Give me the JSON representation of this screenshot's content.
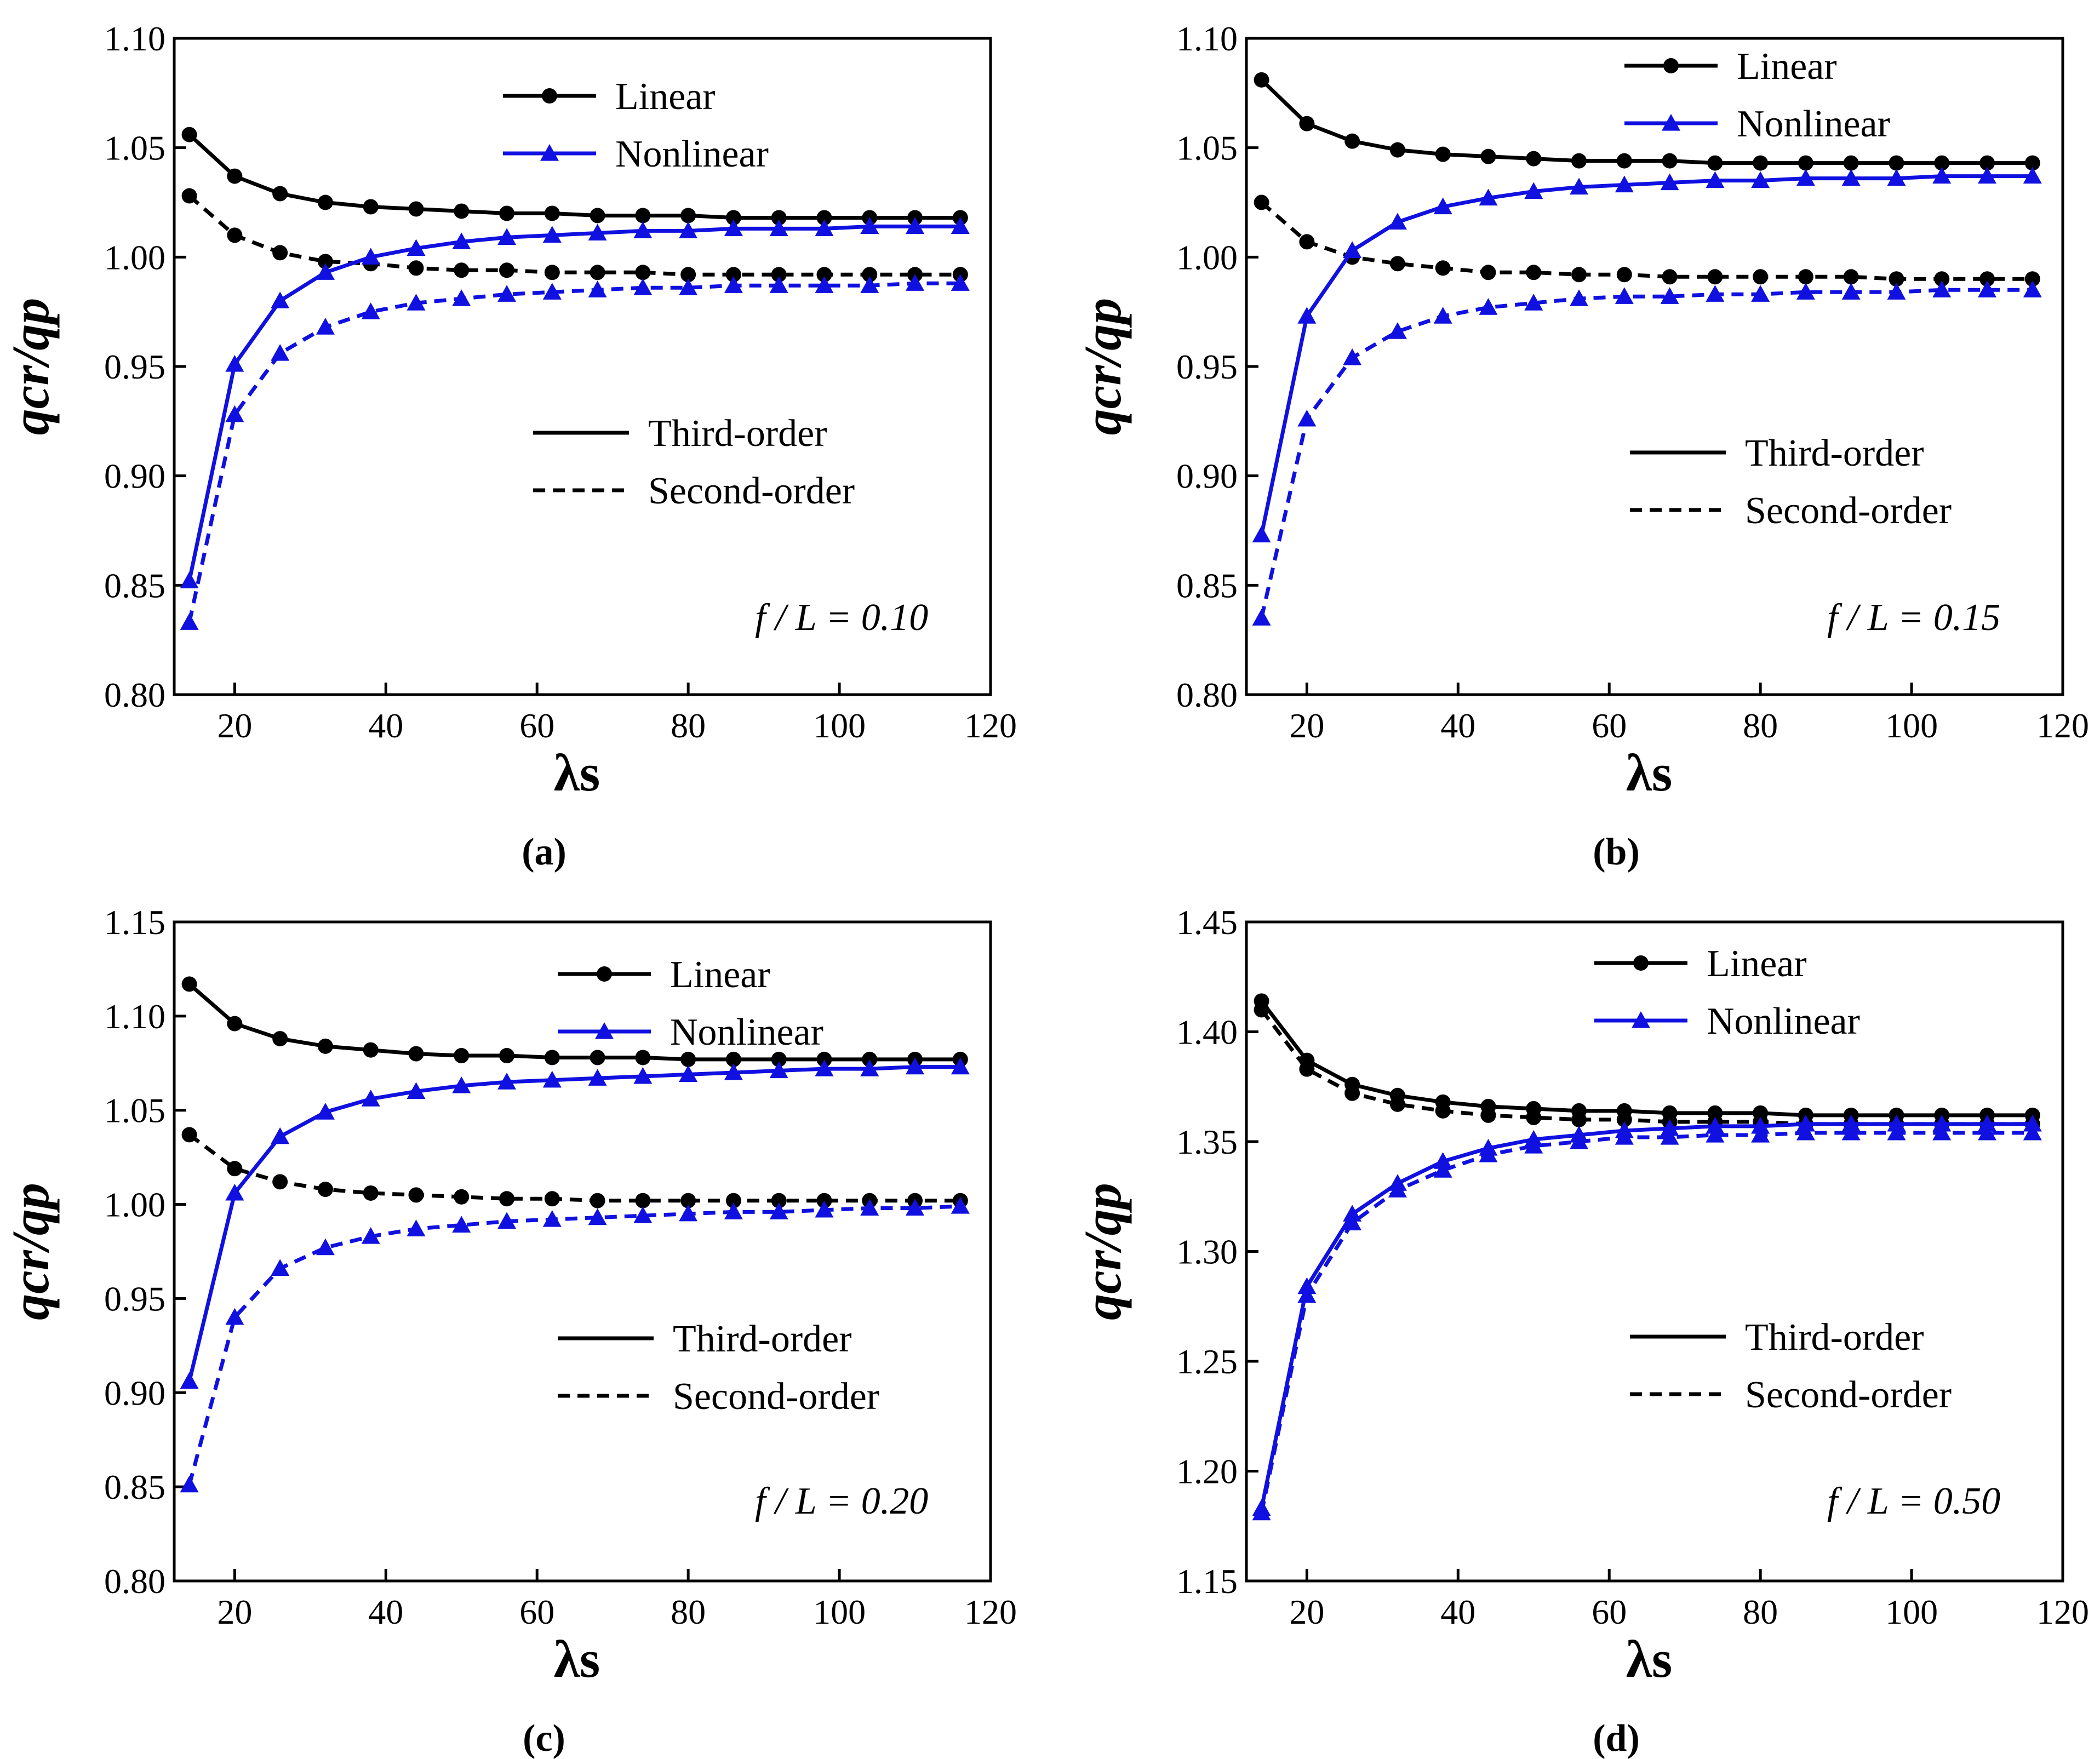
{
  "figure": {
    "captions": [
      "(a)",
      "(b)",
      "(c)",
      "(d)"
    ]
  },
  "chart_data": [
    {
      "type": "line",
      "panel": "a",
      "caption": "(a)",
      "annotation": "f / L = 0.10",
      "xlabel": "λs",
      "ylabel": "qcr/qp",
      "xlim": [
        12,
        120
      ],
      "ylim": [
        0.8,
        1.1
      ],
      "xticks": [
        20,
        40,
        60,
        80,
        100,
        120
      ],
      "yticks": [
        0.8,
        0.85,
        0.9,
        0.95,
        1.0,
        1.05,
        1.1
      ],
      "ytick_labels": [
        "0.80",
        "0.85",
        "0.90",
        "0.95",
        "1.00",
        "1.05",
        "1.10"
      ],
      "legend_markers": [
        "Linear",
        "Nonlinear"
      ],
      "legend_lines": [
        "Third-order",
        "Second-order"
      ],
      "x": [
        14,
        20,
        26,
        32,
        38,
        44,
        50,
        56,
        62,
        68,
        74,
        80,
        86,
        92,
        98,
        104,
        110,
        116
      ],
      "series": [
        {
          "name": "Linear",
          "order": "Third-order",
          "color": "#000000",
          "dash": false,
          "marker": "circle",
          "values": [
            1.056,
            1.037,
            1.029,
            1.025,
            1.023,
            1.022,
            1.021,
            1.02,
            1.02,
            1.019,
            1.019,
            1.019,
            1.018,
            1.018,
            1.018,
            1.018,
            1.018,
            1.018
          ]
        },
        {
          "name": "Linear",
          "order": "Second-order",
          "color": "#000000",
          "dash": true,
          "marker": "circle",
          "values": [
            1.028,
            1.01,
            1.002,
            0.998,
            0.997,
            0.995,
            0.994,
            0.994,
            0.993,
            0.993,
            0.993,
            0.992,
            0.992,
            0.992,
            0.992,
            0.992,
            0.992,
            0.992
          ]
        },
        {
          "name": "Nonlinear",
          "order": "Third-order",
          "color": "#1010e0",
          "dash": false,
          "marker": "triangle",
          "values": [
            0.852,
            0.951,
            0.98,
            0.993,
            1.0,
            1.004,
            1.007,
            1.009,
            1.01,
            1.011,
            1.012,
            1.012,
            1.013,
            1.013,
            1.013,
            1.014,
            1.014,
            1.014
          ]
        },
        {
          "name": "Nonlinear",
          "order": "Second-order",
          "color": "#1010e0",
          "dash": true,
          "marker": "triangle",
          "values": [
            0.833,
            0.928,
            0.956,
            0.968,
            0.975,
            0.979,
            0.981,
            0.983,
            0.984,
            0.985,
            0.986,
            0.986,
            0.987,
            0.987,
            0.987,
            0.987,
            0.988,
            0.988
          ]
        }
      ]
    },
    {
      "type": "line",
      "panel": "b",
      "caption": "(b)",
      "annotation": "f / L = 0.15",
      "xlabel": "λs",
      "ylabel": "qcr/qp",
      "xlim": [
        12,
        120
      ],
      "ylim": [
        0.8,
        1.1
      ],
      "xticks": [
        20,
        40,
        60,
        80,
        100,
        120
      ],
      "yticks": [
        0.8,
        0.85,
        0.9,
        0.95,
        1.0,
        1.05,
        1.1
      ],
      "ytick_labels": [
        "0.80",
        "0.85",
        "0.90",
        "0.95",
        "1.00",
        "1.05",
        "1.10"
      ],
      "legend_markers": [
        "Linear",
        "Nonlinear"
      ],
      "legend_lines": [
        "Third-order",
        "Second-order"
      ],
      "x": [
        14,
        20,
        26,
        32,
        38,
        44,
        50,
        56,
        62,
        68,
        74,
        80,
        86,
        92,
        98,
        104,
        110,
        116
      ],
      "series": [
        {
          "name": "Linear",
          "order": "Third-order",
          "color": "#000000",
          "dash": false,
          "marker": "circle",
          "values": [
            1.081,
            1.061,
            1.053,
            1.049,
            1.047,
            1.046,
            1.045,
            1.044,
            1.044,
            1.044,
            1.043,
            1.043,
            1.043,
            1.043,
            1.043,
            1.043,
            1.043,
            1.043
          ]
        },
        {
          "name": "Linear",
          "order": "Second-order",
          "color": "#000000",
          "dash": true,
          "marker": "circle",
          "values": [
            1.025,
            1.007,
            1.0,
            0.997,
            0.995,
            0.993,
            0.993,
            0.992,
            0.992,
            0.991,
            0.991,
            0.991,
            0.991,
            0.991,
            0.99,
            0.99,
            0.99,
            0.99
          ]
        },
        {
          "name": "Nonlinear",
          "order": "Third-order",
          "color": "#1010e0",
          "dash": false,
          "marker": "triangle",
          "values": [
            0.873,
            0.973,
            1.003,
            1.016,
            1.023,
            1.027,
            1.03,
            1.032,
            1.033,
            1.034,
            1.035,
            1.035,
            1.036,
            1.036,
            1.036,
            1.037,
            1.037,
            1.037
          ]
        },
        {
          "name": "Nonlinear",
          "order": "Second-order",
          "color": "#1010e0",
          "dash": true,
          "marker": "triangle",
          "values": [
            0.835,
            0.926,
            0.954,
            0.966,
            0.973,
            0.977,
            0.979,
            0.981,
            0.982,
            0.982,
            0.983,
            0.983,
            0.984,
            0.984,
            0.984,
            0.985,
            0.985,
            0.985
          ]
        }
      ]
    },
    {
      "type": "line",
      "panel": "c",
      "caption": "(c)",
      "annotation": "f / L = 0.20",
      "xlabel": "λs",
      "ylabel": "qcr/qp",
      "xlim": [
        12,
        120
      ],
      "ylim": [
        0.8,
        1.15
      ],
      "xticks": [
        20,
        40,
        60,
        80,
        100,
        120
      ],
      "yticks": [
        0.8,
        0.85,
        0.9,
        0.95,
        1.0,
        1.05,
        1.1,
        1.15
      ],
      "ytick_labels": [
        "0.80",
        "0.85",
        "0.90",
        "0.95",
        "1.00",
        "1.05",
        "1.10",
        "1.15"
      ],
      "legend_markers": [
        "Linear",
        "Nonlinear"
      ],
      "legend_lines": [
        "Third-order",
        "Second-order"
      ],
      "x": [
        14,
        20,
        26,
        32,
        38,
        44,
        50,
        56,
        62,
        68,
        74,
        80,
        86,
        92,
        98,
        104,
        110,
        116
      ],
      "series": [
        {
          "name": "Linear",
          "order": "Third-order",
          "color": "#000000",
          "dash": false,
          "marker": "circle",
          "values": [
            1.117,
            1.096,
            1.088,
            1.084,
            1.082,
            1.08,
            1.079,
            1.079,
            1.078,
            1.078,
            1.078,
            1.077,
            1.077,
            1.077,
            1.077,
            1.077,
            1.077,
            1.077
          ]
        },
        {
          "name": "Linear",
          "order": "Second-order",
          "color": "#000000",
          "dash": true,
          "marker": "circle",
          "values": [
            1.037,
            1.019,
            1.012,
            1.008,
            1.006,
            1.005,
            1.004,
            1.003,
            1.003,
            1.002,
            1.002,
            1.002,
            1.002,
            1.002,
            1.002,
            1.002,
            1.002,
            1.002
          ]
        },
        {
          "name": "Nonlinear",
          "order": "Third-order",
          "color": "#1010e0",
          "dash": false,
          "marker": "triangle",
          "values": [
            0.906,
            1.006,
            1.036,
            1.049,
            1.056,
            1.06,
            1.063,
            1.065,
            1.066,
            1.067,
            1.068,
            1.069,
            1.07,
            1.071,
            1.072,
            1.072,
            1.073,
            1.073
          ]
        },
        {
          "name": "Nonlinear",
          "order": "Second-order",
          "color": "#1010e0",
          "dash": true,
          "marker": "triangle",
          "values": [
            0.851,
            0.94,
            0.966,
            0.977,
            0.983,
            0.987,
            0.989,
            0.991,
            0.992,
            0.993,
            0.994,
            0.995,
            0.996,
            0.996,
            0.997,
            0.998,
            0.998,
            0.999
          ]
        }
      ]
    },
    {
      "type": "line",
      "panel": "d",
      "caption": "(d)",
      "annotation": "f / L = 0.50",
      "xlabel": "λs",
      "ylabel": "qcr/qp",
      "xlim": [
        12,
        120
      ],
      "ylim": [
        1.15,
        1.45
      ],
      "xticks": [
        20,
        40,
        60,
        80,
        100,
        120
      ],
      "yticks": [
        1.15,
        1.2,
        1.25,
        1.3,
        1.35,
        1.4,
        1.45
      ],
      "ytick_labels": [
        "1.15",
        "1.20",
        "1.25",
        "1.30",
        "1.35",
        "1.40",
        "1.45"
      ],
      "legend_markers": [
        "Linear",
        "Nonlinear"
      ],
      "legend_lines": [
        "Third-order",
        "Second-order"
      ],
      "x": [
        14,
        20,
        26,
        32,
        38,
        44,
        50,
        56,
        62,
        68,
        74,
        80,
        86,
        92,
        98,
        104,
        110,
        116
      ],
      "series": [
        {
          "name": "Linear",
          "order": "Third-order",
          "color": "#000000",
          "dash": false,
          "marker": "circle",
          "values": [
            1.414,
            1.387,
            1.376,
            1.371,
            1.368,
            1.366,
            1.365,
            1.364,
            1.364,
            1.363,
            1.363,
            1.363,
            1.362,
            1.362,
            1.362,
            1.362,
            1.362,
            1.362
          ]
        },
        {
          "name": "Linear",
          "order": "Second-order",
          "color": "#000000",
          "dash": true,
          "marker": "circle",
          "values": [
            1.41,
            1.383,
            1.372,
            1.367,
            1.364,
            1.362,
            1.361,
            1.36,
            1.36,
            1.359,
            1.359,
            1.359,
            1.358,
            1.358,
            1.358,
            1.358,
            1.358,
            1.358
          ]
        },
        {
          "name": "Nonlinear",
          "order": "Third-order",
          "color": "#1010e0",
          "dash": false,
          "marker": "triangle",
          "values": [
            1.183,
            1.284,
            1.317,
            1.331,
            1.341,
            1.347,
            1.351,
            1.353,
            1.355,
            1.356,
            1.357,
            1.357,
            1.358,
            1.358,
            1.358,
            1.358,
            1.358,
            1.358
          ]
        },
        {
          "name": "Nonlinear",
          "order": "Second-order",
          "color": "#1010e0",
          "dash": true,
          "marker": "triangle",
          "values": [
            1.181,
            1.28,
            1.313,
            1.328,
            1.337,
            1.344,
            1.348,
            1.35,
            1.352,
            1.352,
            1.353,
            1.353,
            1.354,
            1.354,
            1.354,
            1.354,
            1.354,
            1.354
          ]
        }
      ]
    }
  ]
}
